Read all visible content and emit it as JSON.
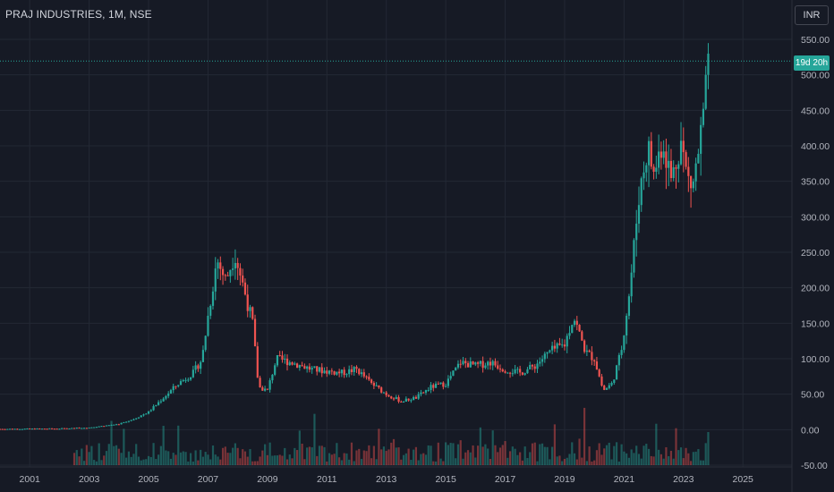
{
  "header": {
    "title": "PRAJ INDUSTRIES, 1M, NSE"
  },
  "toolbar": {
    "currency_label": "INR"
  },
  "price_label": {
    "text": "19d 20h"
  },
  "colors": {
    "background": "#161a25",
    "up": "#26a69a",
    "down": "#ef5350",
    "grid": "#232834",
    "last_price_line": "#26a69a"
  },
  "chart_data": {
    "type": "candlestick",
    "title": "PRAJ INDUSTRIES, 1M, NSE",
    "currency": "INR",
    "y_ticks": [
      550,
      500,
      450,
      400,
      350,
      300,
      250,
      200,
      150,
      100,
      50,
      0,
      -50
    ],
    "y_tick_labels": [
      "550.00",
      "500.00",
      "450.00",
      "400.00",
      "350.00",
      "300.00",
      "250.00",
      "200.00",
      "150.00",
      "100.00",
      "50.00",
      "0.00",
      "-50.00"
    ],
    "ylim": [
      -55,
      565
    ],
    "x_ticks": [
      2001,
      2003,
      2005,
      2007,
      2009,
      2011,
      2013,
      2015,
      2017,
      2019,
      2021,
      2023,
      2025
    ],
    "x_tick_labels": [
      "2001",
      "2003",
      "2005",
      "2007",
      "2009",
      "2011",
      "2013",
      "2015",
      "2017",
      "2019",
      "2021",
      "2023",
      "2025"
    ],
    "xlim": [
      2000.0,
      2026.65
    ],
    "last_price": 519.5,
    "countdown": "19d 20h",
    "grid": true,
    "price_series": [
      {
        "t": 2000.0,
        "close": 1.0
      },
      {
        "t": 2002.0,
        "close": 1.5
      },
      {
        "t": 2003.0,
        "close": 3.0
      },
      {
        "t": 2004.0,
        "close": 8.0
      },
      {
        "t": 2004.5,
        "close": 15.0
      },
      {
        "t": 2005.0,
        "close": 25.0
      },
      {
        "t": 2005.5,
        "close": 45.0
      },
      {
        "t": 2006.0,
        "close": 65.0
      },
      {
        "t": 2006.5,
        "close": 80.0
      },
      {
        "t": 2006.8,
        "close": 100.0
      },
      {
        "t": 2007.0,
        "close": 160.0
      },
      {
        "t": 2007.3,
        "close": 240.0
      },
      {
        "t": 2007.6,
        "close": 210.0
      },
      {
        "t": 2007.9,
        "close": 250.0
      },
      {
        "t": 2008.2,
        "close": 200.0
      },
      {
        "t": 2008.5,
        "close": 150.0
      },
      {
        "t": 2008.7,
        "close": 60.0
      },
      {
        "t": 2009.0,
        "close": 55.0
      },
      {
        "t": 2009.3,
        "close": 100.0
      },
      {
        "t": 2009.8,
        "close": 95.0
      },
      {
        "t": 2010.5,
        "close": 85.0
      },
      {
        "t": 2011.5,
        "close": 80.0
      },
      {
        "t": 2012.0,
        "close": 85.0
      },
      {
        "t": 2012.5,
        "close": 65.0
      },
      {
        "t": 2013.0,
        "close": 50.0
      },
      {
        "t": 2013.5,
        "close": 40.0
      },
      {
        "t": 2014.0,
        "close": 45.0
      },
      {
        "t": 2014.5,
        "close": 60.0
      },
      {
        "t": 2015.0,
        "close": 65.0
      },
      {
        "t": 2015.5,
        "close": 95.0
      },
      {
        "t": 2016.0,
        "close": 90.0
      },
      {
        "t": 2016.5,
        "close": 95.0
      },
      {
        "t": 2017.0,
        "close": 85.0
      },
      {
        "t": 2017.5,
        "close": 80.0
      },
      {
        "t": 2018.0,
        "close": 90.0
      },
      {
        "t": 2018.5,
        "close": 110.0
      },
      {
        "t": 2019.0,
        "close": 120.0
      },
      {
        "t": 2019.3,
        "close": 160.0
      },
      {
        "t": 2019.7,
        "close": 110.0
      },
      {
        "t": 2020.0,
        "close": 100.0
      },
      {
        "t": 2020.3,
        "close": 55.0
      },
      {
        "t": 2020.6,
        "close": 65.0
      },
      {
        "t": 2020.9,
        "close": 110.0
      },
      {
        "t": 2021.2,
        "close": 200.0
      },
      {
        "t": 2021.5,
        "close": 330.0
      },
      {
        "t": 2021.8,
        "close": 400.0
      },
      {
        "t": 2022.0,
        "close": 360.0
      },
      {
        "t": 2022.3,
        "close": 410.0
      },
      {
        "t": 2022.6,
        "close": 350.0
      },
      {
        "t": 2022.9,
        "close": 410.0
      },
      {
        "t": 2023.1,
        "close": 360.0
      },
      {
        "t": 2023.3,
        "close": 340.0
      },
      {
        "t": 2023.5,
        "close": 390.0
      },
      {
        "t": 2023.7,
        "close": 450.0
      },
      {
        "t": 2023.85,
        "close": 519.5
      }
    ]
  }
}
